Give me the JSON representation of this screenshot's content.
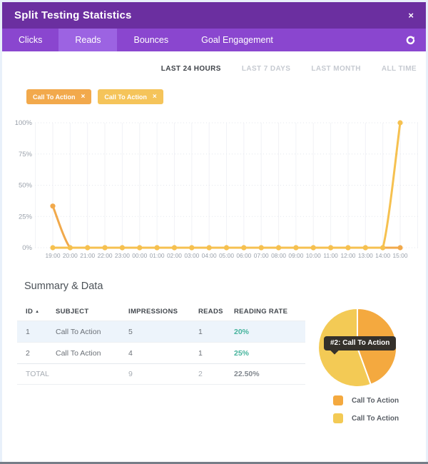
{
  "dialog": {
    "title": "Split Testing Statistics",
    "close_label": "×"
  },
  "tabs": {
    "items": [
      {
        "label": "Clicks",
        "active": false
      },
      {
        "label": "Reads",
        "active": true
      },
      {
        "label": "Bounces",
        "active": false
      },
      {
        "label": "Goal Engagement",
        "active": false
      }
    ]
  },
  "filters": {
    "items": [
      {
        "label": "LAST 24 HOURS",
        "active": true
      },
      {
        "label": "LAST 7 DAYS",
        "active": false
      },
      {
        "label": "LAST MONTH",
        "active": false
      },
      {
        "label": "ALL TIME",
        "active": false
      }
    ]
  },
  "chips": [
    {
      "label": "Call To Action",
      "close_label": "×",
      "color": "#f2a94c"
    },
    {
      "label": "Call To Action",
      "close_label": "×",
      "color": "#f5c45a"
    }
  ],
  "chart_data": [
    {
      "type": "line",
      "x": [
        "19:00",
        "20:00",
        "21:00",
        "22:00",
        "23:00",
        "00:00",
        "01:00",
        "02:00",
        "03:00",
        "04:00",
        "05:00",
        "06:00",
        "07:00",
        "08:00",
        "09:00",
        "10:00",
        "11:00",
        "12:00",
        "13:00",
        "14:00",
        "15:00"
      ],
      "series": [
        {
          "name": "#1: Call To Action",
          "color": "#f1a94b",
          "values": [
            33.33,
            0,
            0,
            0,
            0,
            0,
            0,
            0,
            0,
            0,
            0,
            0,
            0,
            0,
            0,
            0,
            0,
            0,
            0,
            0,
            0
          ]
        },
        {
          "name": "#2: Call To Action",
          "color": "#f6c150",
          "values": [
            0,
            0,
            0,
            0,
            0,
            0,
            0,
            0,
            0,
            0,
            0,
            0,
            0,
            0,
            0,
            0,
            0,
            0,
            0,
            0,
            100
          ]
        }
      ],
      "ylim": [
        0,
        100
      ],
      "yticks": [
        "0%",
        "25%",
        "50%",
        "75%",
        "100%"
      ],
      "grid": true,
      "legend_position": "none"
    },
    {
      "type": "pie",
      "labels": [
        "Call To Action",
        "Call To Action"
      ],
      "values": [
        20,
        25
      ],
      "colors": [
        "#f4a93f",
        "#f3ca55"
      ],
      "tooltip": "#2: Call To Action",
      "legend_position": "bottom"
    }
  ],
  "summary": {
    "heading": "Summary & Data",
    "table": {
      "columns": [
        "ID",
        "SUBJECT",
        "IMPRESSIONS",
        "READS",
        "READING RATE"
      ],
      "sort_arrow": "▲",
      "rows": [
        {
          "id": "1",
          "subject": "Call To Action",
          "impressions": "5",
          "reads": "1",
          "rate": "20%",
          "highlight": true
        },
        {
          "id": "2",
          "subject": "Call To Action",
          "impressions": "4",
          "reads": "1",
          "rate": "25%",
          "highlight": false
        }
      ],
      "total": {
        "label": "TOTAL",
        "impressions": "9",
        "reads": "2",
        "rate": "22.50%"
      }
    }
  }
}
